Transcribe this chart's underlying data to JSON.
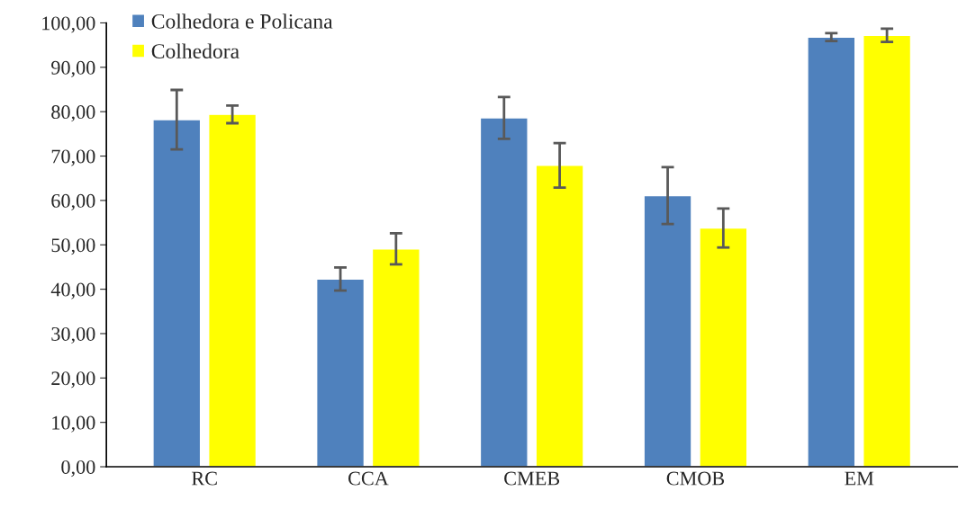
{
  "chart_data": {
    "type": "bar",
    "categories": [
      "RC",
      "CCA",
      "CMEB",
      "CMOB",
      "EM"
    ],
    "series": [
      {
        "name": "Colhedora e Policana",
        "color": "#4f81bd",
        "values": [
          78.2,
          42.3,
          78.6,
          61.1,
          96.8
        ],
        "errors": [
          6.7,
          2.6,
          4.7,
          6.4,
          0.9
        ]
      },
      {
        "name": "Colhedora",
        "color": "#ffff00",
        "values": [
          79.4,
          49.1,
          67.9,
          53.8,
          97.2
        ],
        "errors": [
          2.0,
          3.5,
          5.0,
          4.4,
          1.5
        ]
      }
    ],
    "ylim": [
      0,
      100
    ],
    "yticks": [
      {
        "value": 0,
        "label": "0,00"
      },
      {
        "value": 10,
        "label": "10,00"
      },
      {
        "value": 20,
        "label": "20,00"
      },
      {
        "value": 30,
        "label": "30,00"
      },
      {
        "value": 40,
        "label": "40,00"
      },
      {
        "value": 50,
        "label": "50,00"
      },
      {
        "value": 60,
        "label": "60,00"
      },
      {
        "value": 70,
        "label": "70,00"
      },
      {
        "value": 80,
        "label": "80,00"
      },
      {
        "value": 90,
        "label": "90,00"
      },
      {
        "value": 100,
        "label": "100,00"
      }
    ],
    "grid": false,
    "legend": "top left"
  }
}
